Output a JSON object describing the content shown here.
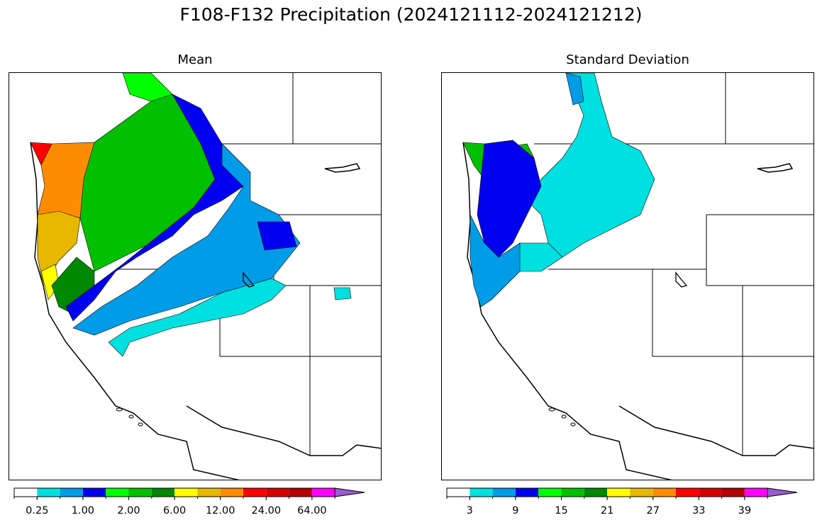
{
  "figure": {
    "title": "F108-F132 Precipitation (2024121112-2024121212)"
  },
  "panels": [
    {
      "title": "Mean",
      "colorbar": {
        "tick_labels": [
          "0.25",
          "1.00",
          "2.00",
          "6.00",
          "12.00",
          "24.00",
          "64.00"
        ],
        "tick_after_bin": [
          1,
          3,
          5,
          7,
          9,
          11,
          13
        ],
        "extend": "max"
      }
    },
    {
      "title": "Standard Deviation",
      "colorbar": {
        "tick_labels": [
          "3",
          "9",
          "15",
          "21",
          "27",
          "33",
          "39"
        ],
        "tick_after_bin": [
          1,
          3,
          5,
          7,
          9,
          11,
          13
        ],
        "extend": "max"
      }
    }
  ],
  "colors": {
    "levels": [
      "#ffffff",
      "#00e0e0",
      "#009ce8",
      "#0000f0",
      "#00ff00",
      "#00c000",
      "#008800",
      "#ffff00",
      "#e6b800",
      "#ff8c00",
      "#ff0000",
      "#d40000",
      "#b40000",
      "#ff00ff",
      "#9a5ccd"
    ]
  }
}
